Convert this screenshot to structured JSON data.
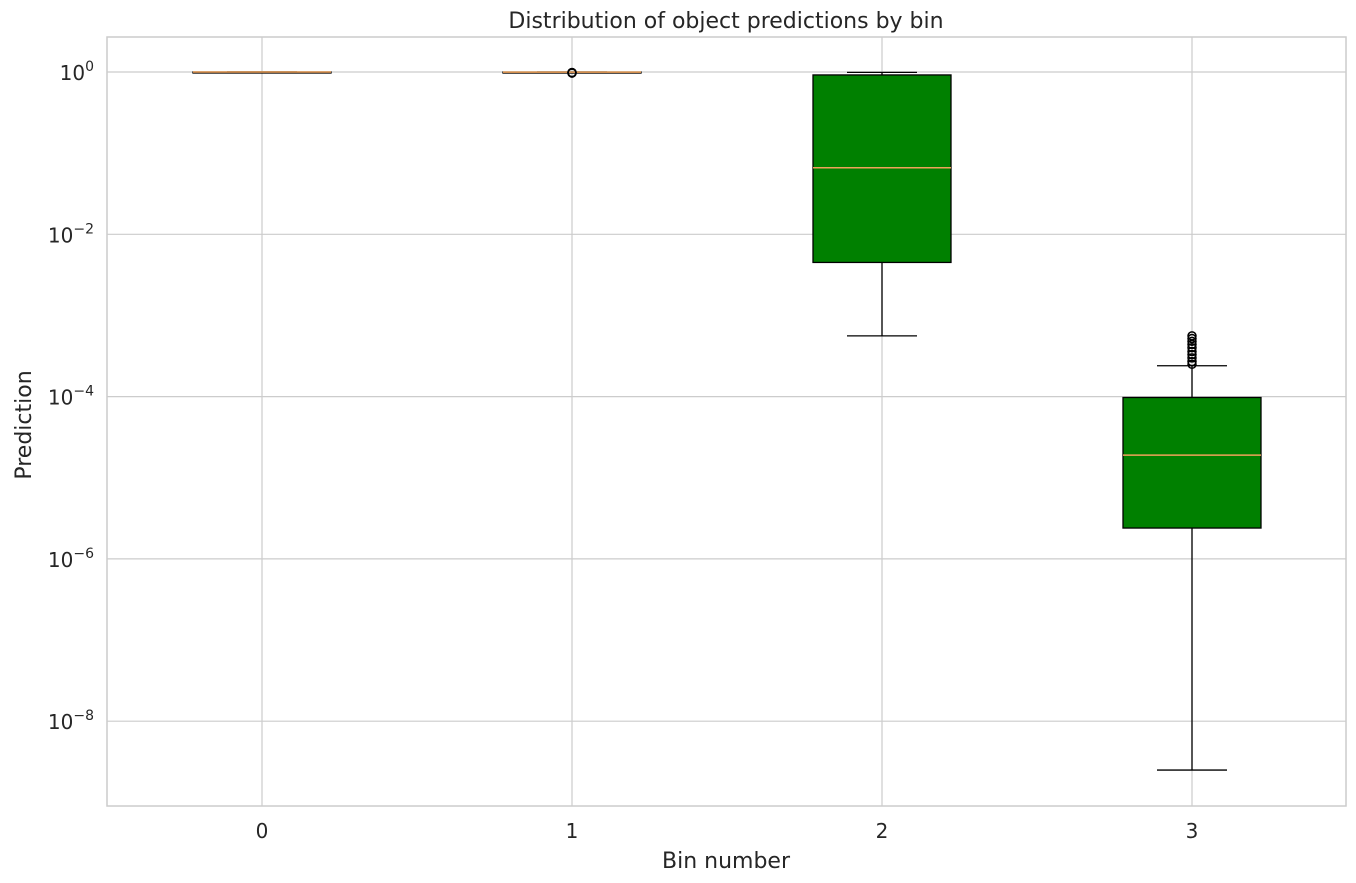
{
  "chart_data": {
    "type": "box",
    "title": "Distribution of object predictions by bin",
    "xlabel": "Bin number",
    "ylabel": "Prediction",
    "y_scale": "log",
    "ylim": [
      1e-09,
      2.5
    ],
    "categories": [
      "0",
      "1",
      "2",
      "3"
    ],
    "y_ticks": [
      {
        "value": 1,
        "base": "10",
        "exp": "0"
      },
      {
        "value": 0.01,
        "base": "10",
        "exp": "−2"
      },
      {
        "value": 0.0001,
        "base": "10",
        "exp": "−4"
      },
      {
        "value": 1e-06,
        "base": "10",
        "exp": "−6"
      },
      {
        "value": 1e-08,
        "base": "10",
        "exp": "−8"
      }
    ],
    "grid": true,
    "box_color": "#008000",
    "median_color": "#f0a35a",
    "boxes": [
      {
        "category": "0",
        "whislo": 0.999,
        "q1": 0.999,
        "median": 1.0,
        "q3": 1.0,
        "whishi": 1.0,
        "fliers": []
      },
      {
        "category": "1",
        "whislo": 0.985,
        "q1": 0.995,
        "median": 0.998,
        "q3": 0.999,
        "whishi": 1.0,
        "fliers": [
          0.97,
          0.975,
          0.98,
          0.985
        ]
      },
      {
        "category": "2",
        "whislo": 0.00056,
        "q1": 0.0045,
        "median": 0.066,
        "q3": 0.92,
        "whishi": 0.99,
        "fliers": []
      },
      {
        "category": "3",
        "whislo": 2.5e-09,
        "q1": 2.4e-06,
        "median": 1.9e-05,
        "q3": 9.75e-05,
        "whishi": 0.00024,
        "fliers": [
          0.00025,
          0.00027,
          0.0003,
          0.00033,
          0.00036,
          0.0004,
          0.00044,
          0.00048,
          0.00052,
          0.00056
        ]
      }
    ]
  }
}
